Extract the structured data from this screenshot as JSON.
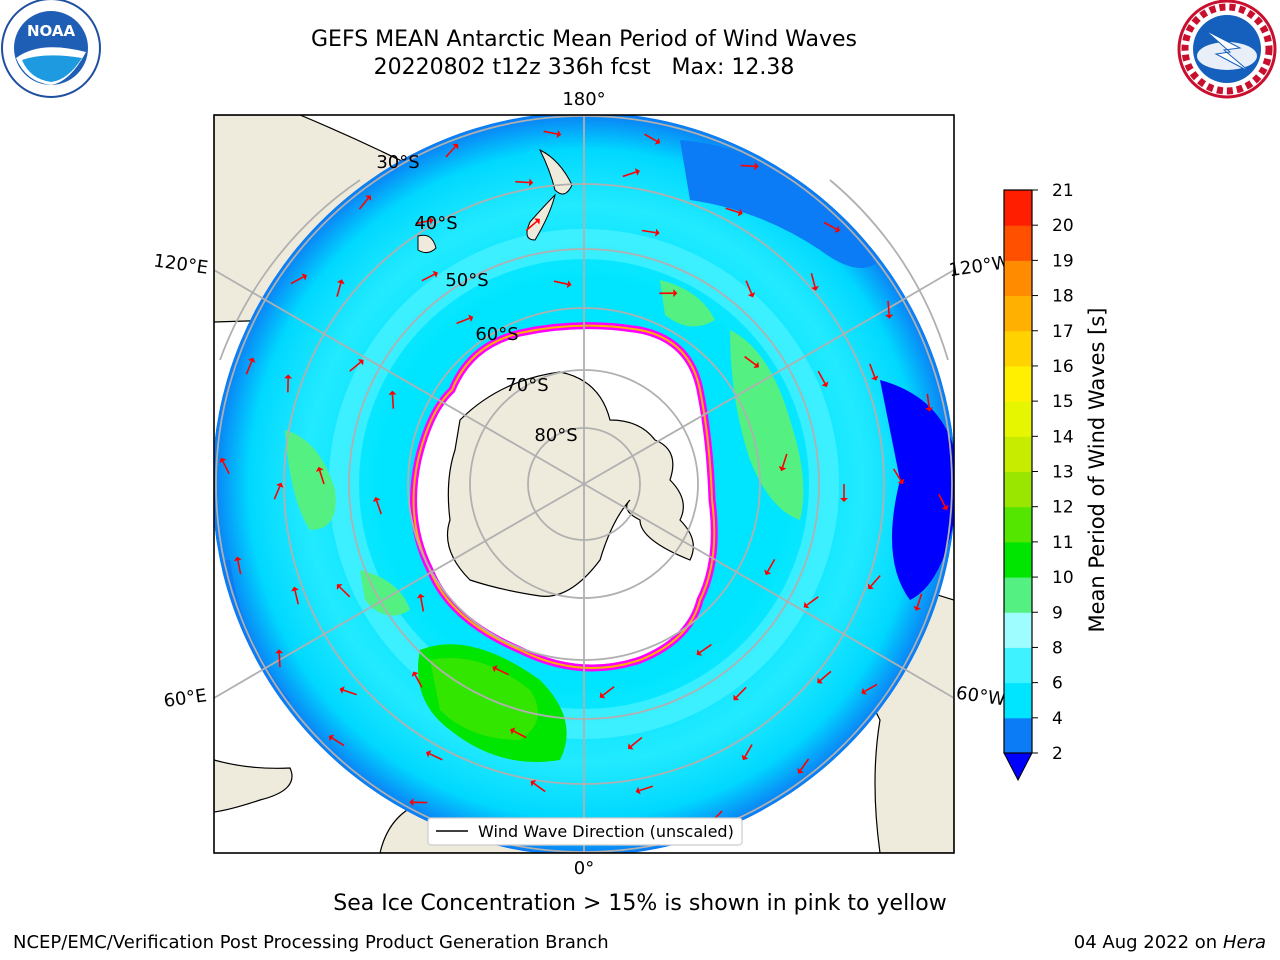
{
  "title": {
    "line1": "GEFS MEAN Antarctic Mean Period of Wind Waves",
    "line2": "20220802 t12z 336h fcst   Max: 12.38"
  },
  "logos": {
    "noaa": {
      "text": "NOAA",
      "ring": "NATIONAL OCEANIC AND ATMOSPHERIC ADMINISTRATION · U.S. DEPARTMENT OF COMMERCE"
    },
    "nws": {
      "ring": "NATIONAL WEATHER SERVICE"
    }
  },
  "map": {
    "projection": "south-polar-stereographic",
    "lon_labels": {
      "top": "180°",
      "bottom": "0°",
      "upper_left": "120°E",
      "upper_right": "120°W",
      "lower_left": "60°E",
      "lower_right": "60°W"
    },
    "lat_labels": [
      "30°S",
      "40°S",
      "50°S",
      "60°S",
      "70°S",
      "80°S"
    ],
    "legend_label": "Wind Wave Direction (unscaled)",
    "arrow_color": "#ff0000",
    "land_color": "#efebdc",
    "ice_edge_colors": [
      "#ff00ff",
      "#ffb000",
      "#ffff00"
    ]
  },
  "colorbar": {
    "label": "Mean Period of Wind Waves [s]",
    "ticks": [
      "2",
      "4",
      "6",
      "8",
      "9",
      "10",
      "11",
      "12",
      "13",
      "14",
      "15",
      "16",
      "17",
      "18",
      "19",
      "20",
      "21"
    ],
    "colors": [
      "#0b7cf5",
      "#00e5ff",
      "#3ef2ff",
      "#9efdff",
      "#55f082",
      "#00e600",
      "#55e600",
      "#9be600",
      "#c8ec00",
      "#e6f500",
      "#fff000",
      "#ffd200",
      "#ffb000",
      "#ff8c00",
      "#ff5000",
      "#ff1e00"
    ],
    "under_color": "#0000ff"
  },
  "footer": {
    "ice_note": "Sea Ice Concentration > 15% is shown in pink to yellow",
    "credit": "NCEP/EMC/Verification Post Processing Product Generation Branch",
    "date": "04 Aug 2022 on",
    "host": "Hera"
  }
}
